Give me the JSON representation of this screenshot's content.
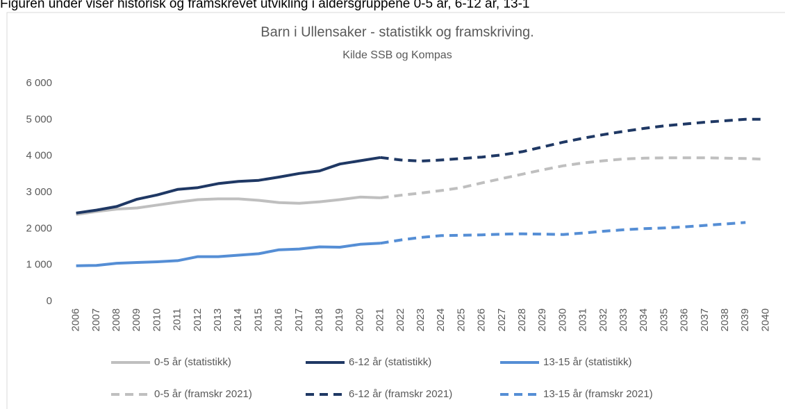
{
  "intro": "Figuren under viser historisk og framskrevet utvikling i aldersgruppene 0-5 år, 6-12 år, 13-1",
  "chart_data": {
    "type": "line",
    "title": "Barn i Ullensaker - statistikk og framskriving.",
    "subtitle": "Kilde SSB og Kompas",
    "categories": [
      "2006",
      "2007",
      "2008",
      "2009",
      "2010",
      "2011",
      "2012",
      "2013",
      "2014",
      "2015",
      "2016",
      "2017",
      "2018",
      "2019",
      "2020",
      "2021",
      "2022",
      "2023",
      "2024",
      "2025",
      "2026",
      "2027",
      "2028",
      "2029",
      "2030",
      "2031",
      "2032",
      "2033",
      "2034",
      "2035",
      "2036",
      "2037",
      "2038",
      "2039",
      "2040"
    ],
    "ylim": [
      0,
      6000
    ],
    "yticks": [
      0,
      {
        "value": 1000,
        "label": "1 000"
      },
      {
        "value": 2000,
        "label": "2 000"
      },
      {
        "value": 3000,
        "label": "3 000"
      },
      {
        "value": 4000,
        "label": "4 000"
      },
      {
        "value": 5000,
        "label": "5 000"
      },
      {
        "value": 6000,
        "label": "6 000"
      }
    ],
    "grid": false,
    "legend": "bottom",
    "series": [
      {
        "name": "0-5 år (statistikk)",
        "color": "#bfbfbf",
        "dashed": false,
        "values": [
          2390,
          2470,
          2540,
          2570,
          2650,
          2730,
          2800,
          2820,
          2820,
          2780,
          2720,
          2700,
          2740,
          2800,
          2870,
          2850,
          null,
          null,
          null,
          null,
          null,
          null,
          null,
          null,
          null,
          null,
          null,
          null,
          null,
          null,
          null,
          null,
          null,
          null,
          null
        ]
      },
      {
        "name": "6-12 år (statistikk)",
        "color": "#1f3864",
        "dashed": false,
        "values": [
          2430,
          2510,
          2610,
          2810,
          2930,
          3080,
          3130,
          3240,
          3300,
          3330,
          3420,
          3520,
          3590,
          3780,
          3870,
          3960,
          null,
          null,
          null,
          null,
          null,
          null,
          null,
          null,
          null,
          null,
          null,
          null,
          null,
          null,
          null,
          null,
          null,
          null,
          null
        ]
      },
      {
        "name": "13-15 år (statistikk)",
        "color": "#558ed5",
        "dashed": false,
        "values": [
          980,
          990,
          1050,
          1070,
          1090,
          1120,
          1230,
          1230,
          1270,
          1310,
          1420,
          1440,
          1500,
          1490,
          1570,
          1600,
          null,
          null,
          null,
          null,
          null,
          null,
          null,
          null,
          null,
          null,
          null,
          null,
          null,
          null,
          null,
          null,
          null,
          null,
          null
        ]
      },
      {
        "name": "0-5 år (framskr 2021)",
        "color": "#bfbfbf",
        "dashed": true,
        "values": [
          null,
          null,
          null,
          null,
          null,
          null,
          null,
          null,
          null,
          null,
          null,
          null,
          null,
          null,
          null,
          2850,
          2920,
          2980,
          3050,
          3130,
          3260,
          3380,
          3500,
          3620,
          3730,
          3810,
          3870,
          3920,
          3940,
          3950,
          3950,
          3950,
          3940,
          3930,
          3910
        ]
      },
      {
        "name": "6-12 år (framskr 2021)",
        "color": "#1f3864",
        "dashed": true,
        "values": [
          null,
          null,
          null,
          null,
          null,
          null,
          null,
          null,
          null,
          null,
          null,
          null,
          null,
          null,
          null,
          3960,
          3890,
          3860,
          3890,
          3930,
          3970,
          4030,
          4120,
          4250,
          4380,
          4490,
          4590,
          4680,
          4760,
          4830,
          4880,
          4930,
          4970,
          5010,
          5010
        ]
      },
      {
        "name": "13-15 år (framskr 2021)",
        "color": "#558ed5",
        "dashed": true,
        "values": [
          null,
          null,
          null,
          null,
          null,
          null,
          null,
          null,
          null,
          null,
          null,
          null,
          null,
          null,
          null,
          1600,
          1690,
          1760,
          1810,
          1820,
          1830,
          1850,
          1860,
          1850,
          1840,
          1880,
          1930,
          1970,
          2000,
          2020,
          2050,
          2090,
          2130,
          2170,
          null
        ]
      }
    ]
  }
}
